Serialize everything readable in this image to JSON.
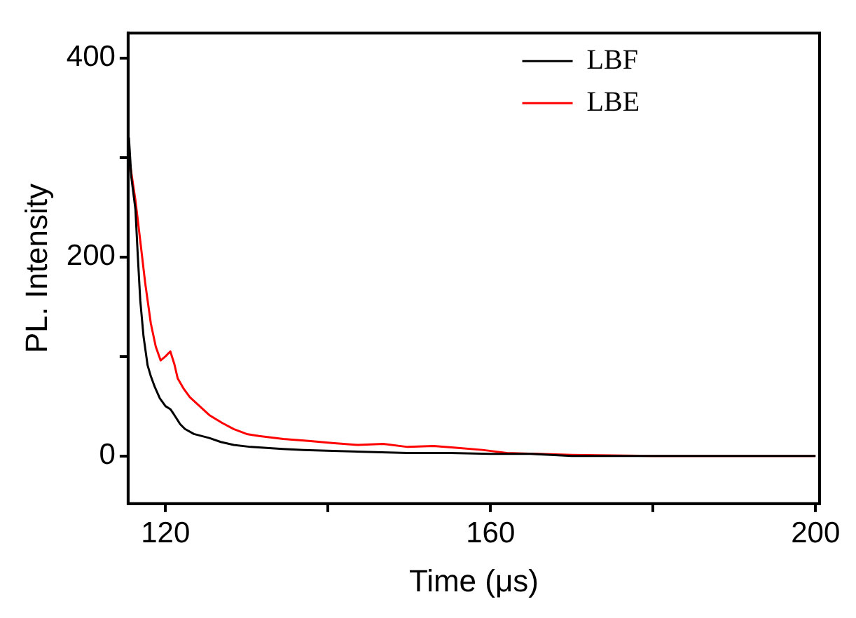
{
  "chart_data": {
    "type": "line",
    "xlabel": "Time (μs)",
    "ylabel": "PL. Intensity",
    "xlim": [
      115.4,
      200.5
    ],
    "xticks": [
      120,
      {
        "value": 140,
        "label": null
      },
      160,
      {
        "value": 180,
        "label": null
      },
      200
    ],
    "ylim": [
      -48,
      425
    ],
    "yticks": [
      0,
      {
        "value": 100,
        "label": null
      },
      200,
      {
        "value": 300,
        "label": null
      },
      400
    ],
    "grid": false,
    "legend": "top right",
    "marker": "none",
    "line_style": "solid",
    "series": [
      {
        "name": "LBF",
        "color": "#000000",
        "x": [
          115.5,
          115.8,
          116.3,
          116.6,
          116.9,
          117.3,
          117.8,
          118.2,
          118.7,
          119.3,
          120,
          120.6,
          121.1,
          121.8,
          122.4,
          123.5,
          125.4,
          126.8,
          128.4,
          130.5,
          134.4,
          137,
          140.6,
          145,
          149.8,
          155,
          160,
          165,
          170,
          180,
          190,
          200
        ],
        "values": [
          320,
          280,
          248,
          200,
          156,
          120,
          91,
          80,
          69,
          58,
          50,
          47,
          41,
          32,
          27,
          22,
          18,
          14,
          11,
          9,
          7,
          6,
          5,
          4,
          3,
          3,
          2,
          2,
          0,
          0,
          0,
          0
        ]
      },
      {
        "name": "LBE",
        "color": "#ff0000",
        "x": [
          115.7,
          116.3,
          116.9,
          117.5,
          118.2,
          118.8,
          119.4,
          120,
          120.6,
          121.1,
          121.5,
          122.2,
          123,
          124.2,
          125.4,
          127,
          128.4,
          130,
          131.5,
          134.5,
          137.6,
          140.5,
          143.7,
          146.8,
          149.8,
          153,
          156,
          159,
          162,
          166,
          170,
          180,
          190,
          200
        ],
        "values": [
          290,
          257,
          216,
          174,
          133,
          110,
          96,
          100,
          105,
          92,
          78,
          68,
          59,
          50,
          41,
          33,
          27,
          22,
          20,
          17,
          15,
          13,
          11,
          12,
          9,
          10,
          8,
          6,
          3,
          2,
          1,
          0,
          0,
          0
        ]
      }
    ]
  }
}
